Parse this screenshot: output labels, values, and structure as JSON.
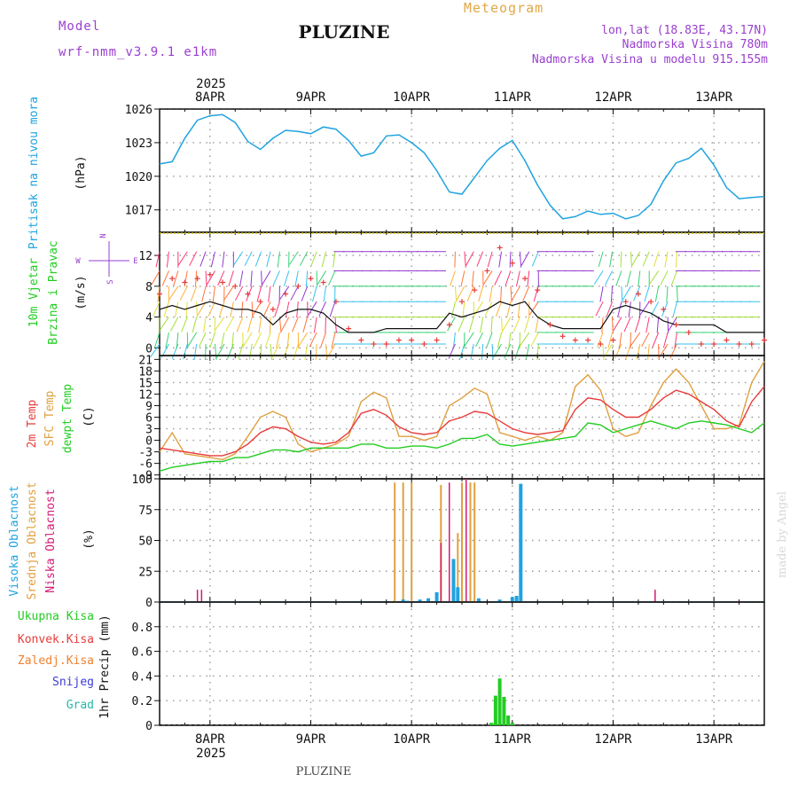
{
  "header": {
    "model_label": "Model",
    "model_name": "wrf-nmm_v3.9.1 e1km",
    "title": "PLUZINE",
    "meteogram_label": "Meteogram",
    "lonlat": "lon,lat (18.83E, 43.17N)",
    "elevation": "Nadmorska Visina 780m",
    "model_elevation": "Nadmorska Visina u modelu 915.155m",
    "footer_station": "PLUZINE",
    "made_by": "made by Angel"
  },
  "colors": {
    "purple": "#9a3fd0",
    "orange": "#e0a84a",
    "pressure": "#1fa3e0",
    "temp2m": "#e83b3b",
    "sfc": "#e0a040",
    "dewpt": "#22cc22",
    "cloud_high": "#1fa3e0",
    "cloud_mid": "#e0a040",
    "cloud_low": "#d41a74",
    "precip": "#22cc22"
  },
  "chart_data": [
    {
      "type": "line",
      "panel": "pressure",
      "ylabel_lines": [
        "Pritisak na nivou mora",
        "(hPa)"
      ],
      "xlim": [
        0,
        144
      ],
      "ylim": [
        1015,
        1026
      ],
      "yticks": [
        1017,
        1020,
        1023,
        1026
      ],
      "xtick_positions": [
        12,
        36,
        60,
        84,
        108,
        132
      ],
      "xtick_labels": [
        "8APR",
        "9APR",
        "10APR",
        "11APR",
        "12APR",
        "13APR"
      ],
      "year_label": "2025",
      "series": [
        {
          "x": [
            0,
            3,
            6,
            9,
            12,
            15,
            18,
            21,
            24,
            27,
            30,
            33,
            36,
            39,
            42,
            45,
            48,
            51,
            54,
            57,
            60,
            63,
            66,
            69,
            72,
            75,
            78,
            81,
            84,
            87,
            90,
            93,
            96,
            99,
            102,
            105,
            108,
            111,
            114,
            117,
            120,
            123,
            126,
            129,
            132,
            135,
            138,
            141,
            144
          ],
          "values": [
            1021.1,
            1021.3,
            1023.4,
            1025.0,
            1025.4,
            1025.5,
            1024.8,
            1023.1,
            1022.4,
            1023.4,
            1024.1,
            1024.0,
            1023.8,
            1024.4,
            1024.2,
            1023.2,
            1021.8,
            1022.1,
            1023.6,
            1023.7,
            1023.0,
            1022.1,
            1020.5,
            1018.6,
            1018.4,
            1019.9,
            1021.4,
            1022.5,
            1023.2,
            1021.4,
            1019.2,
            1017.4,
            1016.2,
            1016.4,
            1016.9,
            1016.6,
            1016.7,
            1016.2,
            1016.5,
            1017.5,
            1019.6,
            1021.2,
            1021.6,
            1022.5,
            1021.0,
            1019.0,
            1018.0,
            1018.1,
            1018.2
          ]
        }
      ]
    },
    {
      "type": "line",
      "panel": "wind",
      "ylabel_lines": [
        "10m Vjetar",
        "Brzina i Pravac",
        "(m/s)"
      ],
      "compass": {
        "n": "N",
        "s": "S",
        "e": "E",
        "w": "W"
      },
      "xlim": [
        0,
        144
      ],
      "ylim": [
        -1,
        15
      ],
      "yticks": [
        0,
        4,
        8,
        12
      ],
      "series": [
        {
          "role": "speed_black",
          "x": [
            0,
            3,
            6,
            9,
            12,
            15,
            18,
            21,
            24,
            27,
            30,
            33,
            36,
            39,
            42,
            45,
            48,
            51,
            54,
            57,
            60,
            63,
            66,
            69,
            72,
            75,
            78,
            81,
            84,
            87,
            90,
            93,
            96,
            99,
            102,
            105,
            108,
            111,
            114,
            117,
            120,
            123,
            126,
            129,
            132,
            135,
            138,
            141,
            144
          ],
          "values": [
            5.0,
            5.5,
            5.0,
            5.5,
            6.0,
            5.5,
            5.0,
            5.0,
            4.5,
            3.0,
            4.5,
            5.0,
            5.0,
            4.5,
            3.0,
            2.0,
            2.0,
            2.0,
            2.5,
            2.5,
            2.5,
            2.5,
            2.5,
            4.5,
            4.0,
            4.5,
            5.0,
            6.0,
            5.5,
            6.0,
            4.0,
            3.0,
            2.5,
            2.5,
            2.5,
            2.5,
            5.0,
            5.5,
            5.0,
            4.5,
            3.5,
            3.0,
            3.0,
            3.0,
            3.0,
            2.0,
            2.0,
            2.0,
            2.0
          ]
        },
        {
          "role": "gust_red",
          "x": [
            0,
            3,
            6,
            9,
            12,
            15,
            18,
            21,
            24,
            27,
            30,
            33,
            36,
            39,
            42,
            45,
            48,
            51,
            54,
            57,
            60,
            63,
            66,
            69,
            72,
            75,
            78,
            81,
            84,
            87,
            90,
            93,
            96,
            99,
            102,
            105,
            108,
            111,
            114,
            117,
            120,
            123,
            126,
            129,
            132,
            135,
            138,
            141,
            144
          ],
          "values": [
            7.0,
            9.0,
            8.5,
            9.0,
            9.5,
            8.5,
            8.0,
            7.0,
            6.0,
            5.0,
            7.0,
            8.0,
            9.0,
            8.5,
            6.0,
            2.5,
            1.0,
            0.5,
            0.5,
            1.0,
            1.0,
            0.5,
            1.0,
            3.0,
            6.0,
            7.5,
            10.0,
            13.0,
            11.0,
            9.0,
            7.5,
            3.0,
            1.5,
            1.0,
            1.0,
            0.5,
            1.0,
            6.0,
            7.0,
            6.0,
            5.0,
            3.0,
            2.0,
            0.5,
            0.5,
            1.0,
            0.5,
            0.5,
            1.0
          ]
        }
      ]
    },
    {
      "type": "line",
      "panel": "temperature",
      "ylabel_lines": [
        "2m Temp",
        "SFC Temp",
        "dewpt Temp",
        "(C)"
      ],
      "xlim": [
        0,
        144
      ],
      "ylim": [
        -10,
        22
      ],
      "yticks": [
        -9,
        -6,
        -3,
        0,
        3,
        6,
        9,
        12,
        15,
        18,
        21
      ],
      "series": [
        {
          "name": "2m Temp",
          "x": [
            0,
            3,
            6,
            9,
            12,
            15,
            18,
            21,
            24,
            27,
            30,
            33,
            36,
            39,
            42,
            45,
            48,
            51,
            54,
            57,
            60,
            63,
            66,
            69,
            72,
            75,
            78,
            81,
            84,
            87,
            90,
            93,
            96,
            99,
            102,
            105,
            108,
            111,
            114,
            117,
            120,
            123,
            126,
            129,
            132,
            135,
            138,
            141,
            144
          ],
          "values": [
            -2,
            -2.5,
            -3,
            -3.5,
            -4,
            -4,
            -3,
            -1,
            2,
            3.5,
            3,
            1,
            -0.5,
            -1,
            -0.5,
            2,
            7,
            8,
            6.5,
            3.5,
            2,
            1.5,
            2,
            5,
            6,
            7.5,
            7,
            5,
            3,
            2,
            1.5,
            2,
            2.5,
            8,
            11,
            10.5,
            8,
            6,
            6,
            8,
            11,
            13,
            12,
            10,
            8,
            5,
            3.5,
            10,
            14
          ]
        },
        {
          "name": "SFC Temp",
          "x": [
            0,
            3,
            6,
            9,
            12,
            15,
            18,
            21,
            24,
            27,
            30,
            33,
            36,
            39,
            42,
            45,
            48,
            51,
            54,
            57,
            60,
            63,
            66,
            69,
            72,
            75,
            78,
            81,
            84,
            87,
            90,
            93,
            96,
            99,
            102,
            105,
            108,
            111,
            114,
            117,
            120,
            123,
            126,
            129,
            132,
            135,
            138,
            141,
            144
          ],
          "values": [
            -3,
            2,
            -3.5,
            -4,
            -4.5,
            -5,
            -3.5,
            1,
            6,
            7.5,
            6,
            -1,
            -3,
            -2,
            -1,
            1,
            10,
            12.5,
            11,
            1,
            1,
            0,
            1,
            9,
            11,
            13.5,
            12,
            2,
            1,
            0,
            1,
            0,
            2,
            14,
            17,
            13,
            3,
            1,
            2,
            9,
            15,
            18.5,
            15,
            9,
            3,
            3,
            4,
            15,
            20.5
          ]
        },
        {
          "name": "dewpt Temp",
          "x": [
            0,
            3,
            6,
            9,
            12,
            15,
            18,
            21,
            24,
            27,
            30,
            33,
            36,
            39,
            42,
            45,
            48,
            51,
            54,
            57,
            60,
            63,
            66,
            69,
            72,
            75,
            78,
            81,
            84,
            87,
            90,
            93,
            96,
            99,
            102,
            105,
            108,
            111,
            114,
            117,
            120,
            123,
            126,
            129,
            132,
            135,
            138,
            141,
            144
          ],
          "values": [
            -8,
            -7,
            -6.5,
            -6,
            -5.5,
            -5.5,
            -4.5,
            -4.5,
            -3.5,
            -2.5,
            -2.5,
            -3,
            -2,
            -2,
            -2,
            -2,
            -1,
            -1,
            -2,
            -2,
            -1.5,
            -1.5,
            -2,
            -1,
            0.5,
            0.5,
            1.5,
            -1,
            -1.5,
            -1,
            -0.5,
            0,
            0.5,
            1,
            4.5,
            4,
            2,
            3,
            4,
            5,
            4,
            3,
            4.5,
            5,
            4.5,
            4,
            3,
            2,
            4.5
          ]
        }
      ]
    },
    {
      "type": "bar",
      "panel": "clouds",
      "ylabel_lines": [
        "Visoka Oblacnost",
        "Srednja Oblacnost",
        "Niska Oblacnost",
        "(%)"
      ],
      "xlim": [
        0,
        144
      ],
      "ylim": [
        0,
        100
      ],
      "yticks": [
        0,
        25,
        50,
        75,
        100
      ],
      "series": [
        {
          "name": "Visoka Oblacnost",
          "x": [
            58,
            59,
            62,
            64,
            66,
            70,
            71,
            76,
            81,
            84,
            85,
            86
          ],
          "values": [
            2,
            1,
            2,
            3,
            8,
            35,
            12,
            3,
            2,
            4,
            5,
            96
          ]
        },
        {
          "name": "Srednja Oblacnost",
          "x": [
            56,
            58,
            60,
            67,
            71,
            72,
            74,
            75
          ],
          "values": [
            97,
            97,
            97,
            95,
            56,
            97,
            97,
            97
          ]
        },
        {
          "name": "Niska Oblacnost",
          "x": [
            9,
            10,
            64,
            67,
            69,
            73,
            118,
            138
          ],
          "values": [
            10,
            10,
            3,
            48,
            97,
            100,
            10,
            1
          ]
        }
      ]
    },
    {
      "type": "bar",
      "panel": "precip",
      "ylabel_lines": [
        "1hr Precip (mm)"
      ],
      "legend": [
        "Ukupna Kisa",
        "Konvek.Kisa",
        "Zaledj.Kisa",
        "Snijeg",
        "Grad"
      ],
      "xlim": [
        0,
        144
      ],
      "ylim": [
        0,
        1.0
      ],
      "yticks": [
        0,
        0.2,
        0.4,
        0.6,
        0.8
      ],
      "xtick_positions": [
        12,
        36,
        60,
        84,
        108,
        132
      ],
      "xtick_labels": [
        "8APR",
        "9APR",
        "10APR",
        "11APR",
        "12APR",
        "13APR"
      ],
      "year_label": "2025",
      "series": [
        {
          "name": "Ukupna Kisa",
          "x": [
            79,
            80,
            81,
            82,
            83,
            84
          ],
          "values": [
            0.02,
            0.24,
            0.38,
            0.23,
            0.08,
            0.02
          ]
        }
      ]
    }
  ]
}
